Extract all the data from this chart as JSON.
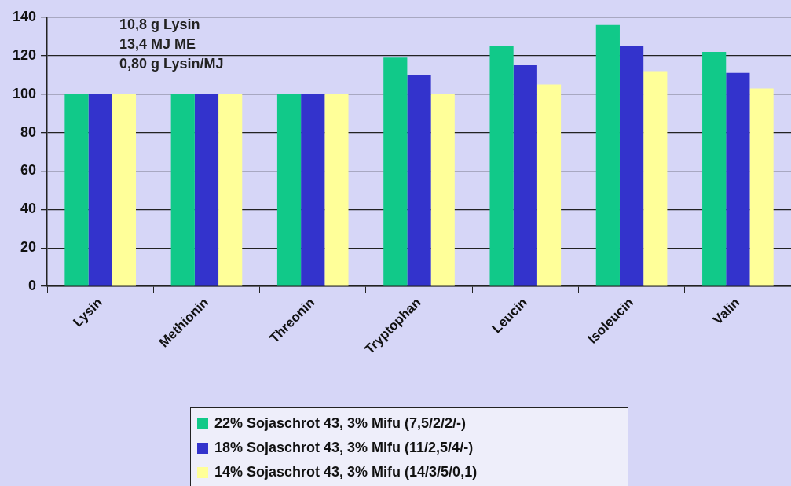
{
  "chart_data": {
    "type": "bar",
    "categories": [
      "Lysin",
      "Methionin",
      "Threonin",
      "Tryptophan",
      "Leucin",
      "Isoleucin",
      "Valin"
    ],
    "series": [
      {
        "name": "22% Sojaschrot 43, 3% Mifu (7,5/2/2/-)",
        "color": "#11c989",
        "values": [
          100,
          100,
          100,
          119,
          125,
          136,
          122
        ]
      },
      {
        "name": "18% Sojaschrot 43, 3% Mifu (11/2,5/4/-)",
        "color": "#3333cc",
        "values": [
          100,
          100,
          100,
          110,
          115,
          125,
          111
        ]
      },
      {
        "name": "14% Sojaschrot 43, 3% Mifu (14/3/5/0,1)",
        "color": "#ffff99",
        "values": [
          100,
          100,
          100,
          100,
          105,
          112,
          103
        ]
      }
    ],
    "ylim": [
      0,
      140
    ],
    "yticks": [
      0,
      20,
      40,
      60,
      80,
      100,
      120,
      140
    ],
    "grid": "y",
    "legend": "bottom",
    "annotations": [
      "10,8 g Lysin",
      "13,4 MJ ME",
      "0,80 g Lysin/MJ"
    ]
  }
}
